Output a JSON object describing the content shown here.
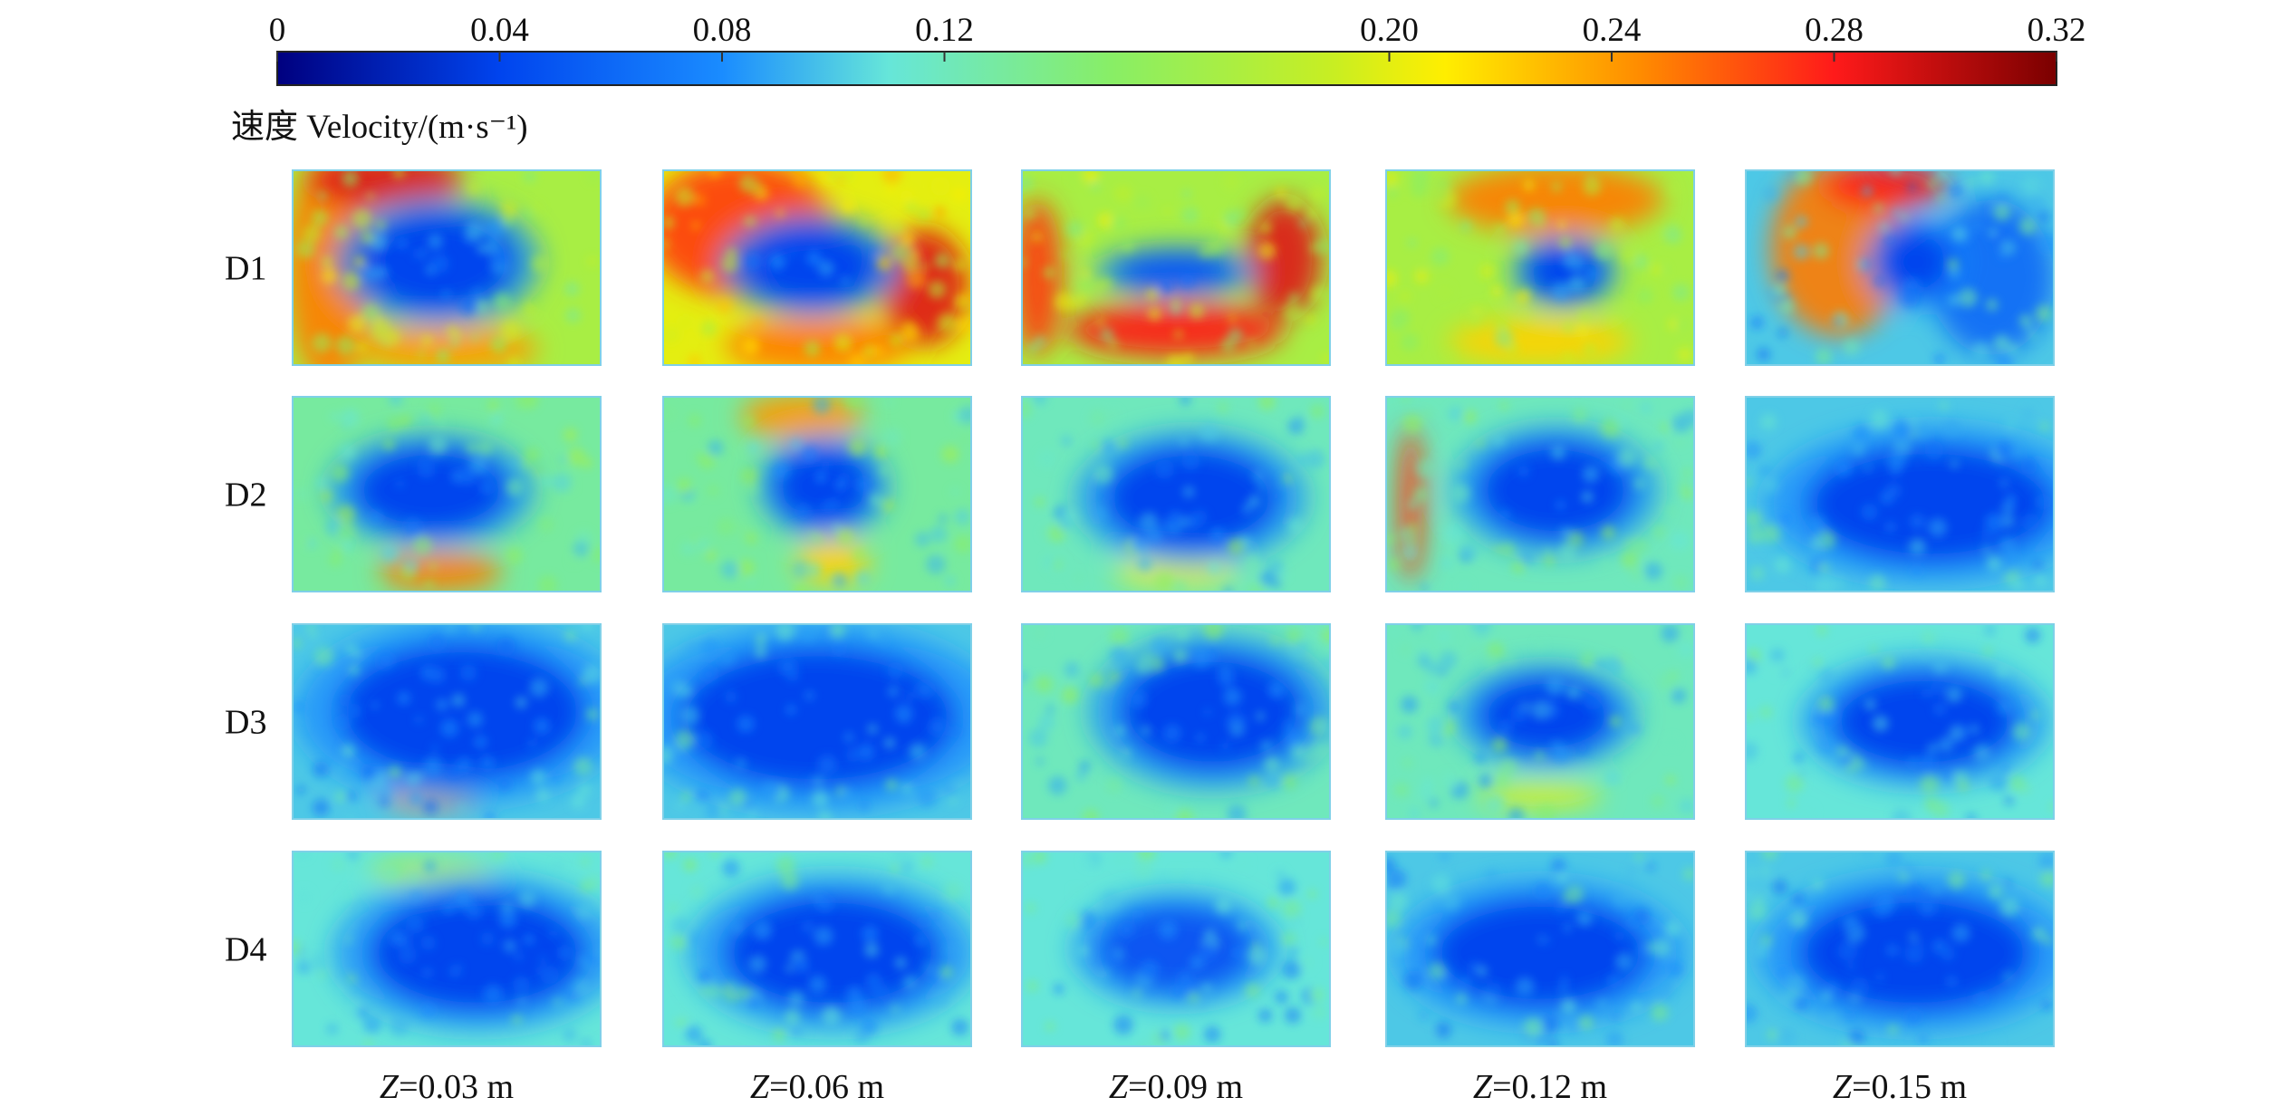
{
  "chart_data": {
    "type": "heatmap",
    "title": "",
    "colorbar": {
      "label": "速度 Velocity/(m·s⁻¹)",
      "range": [
        0,
        0.32
      ],
      "tick_values": [
        0,
        0.04,
        0.08,
        0.12,
        0.2,
        0.24,
        0.28,
        0.32
      ],
      "tick_labels": [
        "0",
        "0.04",
        "0.08",
        "0.12",
        "0.20",
        "0.24",
        "0.28",
        "0.32"
      ],
      "stops": [
        {
          "value": 0.0,
          "color": "#00007f"
        },
        {
          "value": 0.04,
          "color": "#0044ee"
        },
        {
          "value": 0.08,
          "color": "#1a8cff"
        },
        {
          "value": 0.11,
          "color": "#66e6d9"
        },
        {
          "value": 0.15,
          "color": "#88ee66"
        },
        {
          "value": 0.19,
          "color": "#c8ee22"
        },
        {
          "value": 0.21,
          "color": "#ffee00"
        },
        {
          "value": 0.245,
          "color": "#ff8c00"
        },
        {
          "value": 0.28,
          "color": "#ff1a1a"
        },
        {
          "value": 0.32,
          "color": "#7a0000"
        }
      ]
    },
    "rows": [
      "D1",
      "D2",
      "D3",
      "D4"
    ],
    "columns": {
      "variable": "Z",
      "values": [
        "=0.03 m",
        "=0.06 m",
        "=0.09 m",
        "=0.12 m",
        "=0.15 m"
      ]
    },
    "panels": [
      [
        {
          "background": 0.17,
          "core": {
            "cx": 0.47,
            "cy": 0.47,
            "rx": 0.25,
            "ry": 0.25,
            "v": 0.04
          },
          "hot": [
            {
              "cx": 0.12,
              "cy": 0.5,
              "rx": 0.14,
              "ry": 0.6,
              "v": 0.25
            },
            {
              "cx": 0.3,
              "cy": 0.05,
              "rx": 0.25,
              "ry": 0.15,
              "v": 0.29
            },
            {
              "cx": 0.5,
              "cy": 0.92,
              "rx": 0.3,
              "ry": 0.12,
              "v": 0.24
            }
          ]
        },
        {
          "background": 0.2,
          "core": {
            "cx": 0.48,
            "cy": 0.49,
            "rx": 0.22,
            "ry": 0.2,
            "v": 0.04
          },
          "hot": [
            {
              "cx": 0.25,
              "cy": 0.3,
              "rx": 0.3,
              "ry": 0.35,
              "v": 0.27
            },
            {
              "cx": 0.85,
              "cy": 0.6,
              "rx": 0.14,
              "ry": 0.3,
              "v": 0.29
            },
            {
              "cx": 0.5,
              "cy": 0.9,
              "rx": 0.3,
              "ry": 0.14,
              "v": 0.25
            }
          ]
        },
        {
          "background": 0.17,
          "core": {
            "cx": 0.5,
            "cy": 0.52,
            "rx": 0.2,
            "ry": 0.1,
            "v": 0.05
          },
          "hot": [
            {
              "cx": 0.05,
              "cy": 0.55,
              "rx": 0.08,
              "ry": 0.4,
              "v": 0.27
            },
            {
              "cx": 0.5,
              "cy": 0.82,
              "rx": 0.35,
              "ry": 0.14,
              "v": 0.28
            },
            {
              "cx": 0.85,
              "cy": 0.45,
              "rx": 0.12,
              "ry": 0.3,
              "v": 0.29
            }
          ]
        },
        {
          "background": 0.17,
          "core": {
            "cx": 0.58,
            "cy": 0.52,
            "rx": 0.13,
            "ry": 0.14,
            "v": 0.04
          },
          "hot": [
            {
              "cx": 0.55,
              "cy": 0.15,
              "rx": 0.35,
              "ry": 0.18,
              "v": 0.25
            },
            {
              "cx": 0.5,
              "cy": 0.88,
              "rx": 0.3,
              "ry": 0.12,
              "v": 0.22
            }
          ]
        },
        {
          "background": 0.1,
          "core": {
            "cx": 0.55,
            "cy": 0.47,
            "rx": 0.12,
            "ry": 0.18,
            "v": 0.04
          },
          "hot": [
            {
              "cx": 0.3,
              "cy": 0.4,
              "rx": 0.22,
              "ry": 0.45,
              "v": 0.25
            },
            {
              "cx": 0.45,
              "cy": 0.08,
              "rx": 0.2,
              "ry": 0.12,
              "v": 0.28
            },
            {
              "cx": 0.8,
              "cy": 0.55,
              "rx": 0.2,
              "ry": 0.4,
              "v": 0.06
            }
          ]
        }
      ],
      [
        {
          "background": 0.13,
          "core": {
            "cx": 0.45,
            "cy": 0.48,
            "rx": 0.25,
            "ry": 0.22,
            "v": 0.04
          },
          "hot": [
            {
              "cx": 0.48,
              "cy": 0.9,
              "rx": 0.2,
              "ry": 0.1,
              "v": 0.25
            }
          ]
        },
        {
          "background": 0.13,
          "core": {
            "cx": 0.52,
            "cy": 0.46,
            "rx": 0.16,
            "ry": 0.2,
            "v": 0.04
          },
          "hot": [
            {
              "cx": 0.45,
              "cy": 0.1,
              "rx": 0.2,
              "ry": 0.12,
              "v": 0.24
            },
            {
              "cx": 0.55,
              "cy": 0.85,
              "rx": 0.12,
              "ry": 0.12,
              "v": 0.22
            }
          ]
        },
        {
          "background": 0.12,
          "core": {
            "cx": 0.55,
            "cy": 0.52,
            "rx": 0.28,
            "ry": 0.26,
            "v": 0.04
          },
          "hot": [
            {
              "cx": 0.5,
              "cy": 0.9,
              "rx": 0.2,
              "ry": 0.08,
              "v": 0.2
            }
          ]
        },
        {
          "background": 0.12,
          "core": {
            "cx": 0.55,
            "cy": 0.48,
            "rx": 0.25,
            "ry": 0.25,
            "v": 0.04
          },
          "hot": [
            {
              "cx": 0.08,
              "cy": 0.55,
              "rx": 0.04,
              "ry": 0.4,
              "v": 0.27
            }
          ]
        },
        {
          "background": 0.1,
          "core": {
            "cx": 0.6,
            "cy": 0.55,
            "rx": 0.4,
            "ry": 0.3,
            "v": 0.04
          },
          "hot": []
        }
      ],
      [
        {
          "background": 0.1,
          "core": {
            "cx": 0.55,
            "cy": 0.45,
            "rx": 0.4,
            "ry": 0.35,
            "v": 0.04
          },
          "hot": [
            {
              "cx": 0.45,
              "cy": 0.9,
              "rx": 0.15,
              "ry": 0.06,
              "v": 0.24
            }
          ]
        },
        {
          "background": 0.1,
          "core": {
            "cx": 0.5,
            "cy": 0.48,
            "rx": 0.45,
            "ry": 0.36,
            "v": 0.04
          },
          "hot": []
        },
        {
          "background": 0.12,
          "core": {
            "cx": 0.62,
            "cy": 0.45,
            "rx": 0.3,
            "ry": 0.3,
            "v": 0.04
          },
          "hot": []
        },
        {
          "background": 0.12,
          "core": {
            "cx": 0.52,
            "cy": 0.47,
            "rx": 0.22,
            "ry": 0.2,
            "v": 0.04
          },
          "hot": [
            {
              "cx": 0.5,
              "cy": 0.88,
              "rx": 0.2,
              "ry": 0.06,
              "v": 0.2
            }
          ]
        },
        {
          "background": 0.11,
          "core": {
            "cx": 0.58,
            "cy": 0.5,
            "rx": 0.3,
            "ry": 0.25,
            "v": 0.04
          },
          "hot": []
        }
      ],
      [
        {
          "background": 0.11,
          "core": {
            "cx": 0.6,
            "cy": 0.52,
            "rx": 0.35,
            "ry": 0.3,
            "v": 0.04
          },
          "hot": [
            {
              "cx": 0.45,
              "cy": 0.1,
              "rx": 0.2,
              "ry": 0.06,
              "v": 0.18
            }
          ]
        },
        {
          "background": 0.11,
          "core": {
            "cx": 0.55,
            "cy": 0.52,
            "rx": 0.35,
            "ry": 0.3,
            "v": 0.04
          },
          "hot": []
        },
        {
          "background": 0.11,
          "core": {
            "cx": 0.5,
            "cy": 0.5,
            "rx": 0.25,
            "ry": 0.22,
            "v": 0.05
          },
          "hot": []
        },
        {
          "background": 0.1,
          "core": {
            "cx": 0.5,
            "cy": 0.52,
            "rx": 0.35,
            "ry": 0.28,
            "v": 0.04
          },
          "hot": []
        },
        {
          "background": 0.1,
          "core": {
            "cx": 0.55,
            "cy": 0.52,
            "rx": 0.38,
            "ry": 0.3,
            "v": 0.04
          },
          "hot": []
        }
      ]
    ]
  }
}
